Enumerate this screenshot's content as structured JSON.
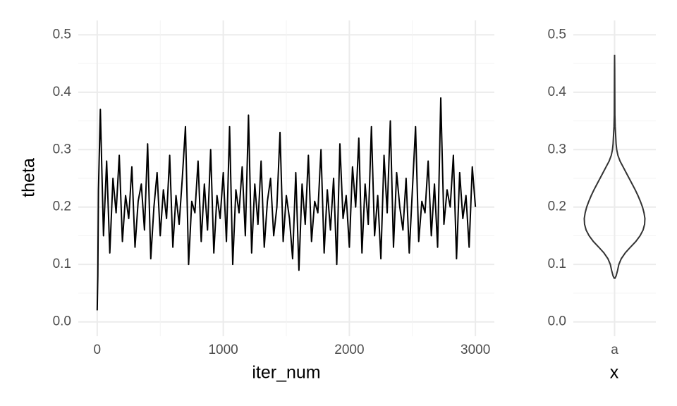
{
  "chart_data": [
    {
      "type": "line",
      "xlabel": "iter_num",
      "ylabel": "theta",
      "color": "#000000",
      "grid": true,
      "xlim": [
        -150,
        3150
      ],
      "xticks": [
        0,
        1000,
        2000,
        3000
      ],
      "x_minor_ticks": [
        500,
        1500,
        2500
      ],
      "ylim": [
        -0.025,
        0.525
      ],
      "yticks": [
        0.0,
        0.1,
        0.2,
        0.3,
        0.4,
        0.5
      ],
      "y_minor_ticks": [
        0.05,
        0.15,
        0.25,
        0.35,
        0.45
      ],
      "ytick_labels": [
        "0.0",
        "0.1",
        "0.2",
        "0.3",
        "0.4",
        "0.5"
      ],
      "x": [
        0,
        5,
        10,
        25,
        50,
        75,
        100,
        125,
        150,
        175,
        200,
        225,
        250,
        275,
        300,
        325,
        350,
        375,
        400,
        425,
        450,
        475,
        500,
        525,
        550,
        575,
        600,
        625,
        650,
        675,
        700,
        725,
        750,
        775,
        800,
        825,
        850,
        875,
        900,
        925,
        950,
        975,
        1000,
        1025,
        1050,
        1075,
        1100,
        1125,
        1150,
        1175,
        1200,
        1225,
        1250,
        1275,
        1300,
        1325,
        1350,
        1375,
        1400,
        1425,
        1450,
        1475,
        1500,
        1525,
        1550,
        1575,
        1600,
        1625,
        1650,
        1675,
        1700,
        1725,
        1750,
        1775,
        1800,
        1825,
        1850,
        1875,
        1900,
        1925,
        1950,
        1975,
        2000,
        2025,
        2050,
        2075,
        2100,
        2125,
        2150,
        2175,
        2200,
        2225,
        2250,
        2275,
        2300,
        2325,
        2350,
        2375,
        2400,
        2425,
        2450,
        2475,
        2500,
        2525,
        2550,
        2575,
        2600,
        2625,
        2650,
        2675,
        2700,
        2725,
        2750,
        2775,
        2800,
        2825,
        2850,
        2875,
        2900,
        2925,
        2950,
        2975,
        3000
      ],
      "values": [
        0.02,
        0.08,
        0.23,
        0.37,
        0.15,
        0.28,
        0.12,
        0.25,
        0.19,
        0.29,
        0.14,
        0.22,
        0.18,
        0.27,
        0.13,
        0.21,
        0.24,
        0.16,
        0.31,
        0.11,
        0.2,
        0.26,
        0.15,
        0.23,
        0.18,
        0.29,
        0.13,
        0.22,
        0.17,
        0.25,
        0.34,
        0.1,
        0.21,
        0.19,
        0.28,
        0.14,
        0.24,
        0.16,
        0.3,
        0.12,
        0.22,
        0.18,
        0.26,
        0.14,
        0.34,
        0.1,
        0.23,
        0.19,
        0.27,
        0.15,
        0.36,
        0.12,
        0.24,
        0.17,
        0.28,
        0.13,
        0.21,
        0.25,
        0.15,
        0.2,
        0.33,
        0.14,
        0.22,
        0.18,
        0.11,
        0.26,
        0.09,
        0.24,
        0.17,
        0.29,
        0.14,
        0.21,
        0.19,
        0.3,
        0.12,
        0.23,
        0.16,
        0.25,
        0.1,
        0.31,
        0.18,
        0.22,
        0.13,
        0.27,
        0.2,
        0.32,
        0.12,
        0.24,
        0.17,
        0.34,
        0.15,
        0.22,
        0.11,
        0.29,
        0.19,
        0.35,
        0.13,
        0.26,
        0.2,
        0.16,
        0.25,
        0.12,
        0.23,
        0.34,
        0.14,
        0.21,
        0.19,
        0.28,
        0.15,
        0.24,
        0.13,
        0.39,
        0.17,
        0.23,
        0.2,
        0.29,
        0.11,
        0.26,
        0.18,
        0.22,
        0.13,
        0.27,
        0.2
      ]
    },
    {
      "type": "violin",
      "xlabel": "x",
      "categories": [
        "a"
      ],
      "color": "#333333",
      "grid": true,
      "ylim": [
        -0.025,
        0.525
      ],
      "yticks": [
        0.0,
        0.1,
        0.2,
        0.3,
        0.4,
        0.5
      ],
      "y_minor_ticks": [
        0.05,
        0.15,
        0.25,
        0.35,
        0.45
      ],
      "ytick_labels": [
        "0.0",
        "0.1",
        "0.2",
        "0.3",
        "0.4",
        "0.5"
      ],
      "y": [
        0.075,
        0.08,
        0.09,
        0.1,
        0.11,
        0.12,
        0.13,
        0.14,
        0.15,
        0.16,
        0.17,
        0.18,
        0.19,
        0.2,
        0.21,
        0.22,
        0.23,
        0.24,
        0.25,
        0.26,
        0.27,
        0.28,
        0.29,
        0.3,
        0.31,
        0.32,
        0.33,
        0.34,
        0.36,
        0.4,
        0.44,
        0.465
      ],
      "density": [
        0,
        0.05,
        0.1,
        0.14,
        0.22,
        0.35,
        0.52,
        0.7,
        0.84,
        0.94,
        0.99,
        1,
        0.97,
        0.92,
        0.85,
        0.77,
        0.68,
        0.58,
        0.48,
        0.38,
        0.28,
        0.18,
        0.11,
        0.07,
        0.05,
        0.04,
        0.03,
        0.02,
        0.01,
        0.007,
        0.004,
        0
      ]
    }
  ]
}
